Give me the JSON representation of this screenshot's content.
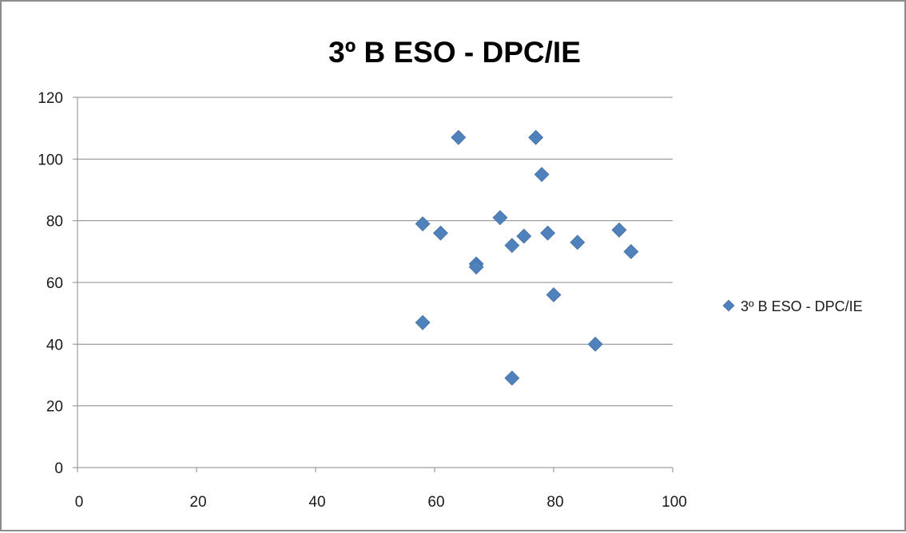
{
  "chart_data": {
    "type": "scatter",
    "title": "3º B ESO - DPC/IE",
    "xlabel": "",
    "ylabel": "",
    "xlim": [
      0,
      100
    ],
    "ylim": [
      0,
      120
    ],
    "x_ticks": [
      0,
      20,
      40,
      60,
      80,
      100
    ],
    "y_ticks": [
      0,
      20,
      40,
      60,
      80,
      100,
      120
    ],
    "grid": "horizontal",
    "legend_position": "right",
    "series": [
      {
        "name": "3º B ESO - DPC/IE",
        "color": "#4f81bd",
        "marker": "diamond",
        "points": [
          {
            "x": 58,
            "y": 79
          },
          {
            "x": 58,
            "y": 47
          },
          {
            "x": 61,
            "y": 76
          },
          {
            "x": 64,
            "y": 107
          },
          {
            "x": 67,
            "y": 66
          },
          {
            "x": 67,
            "y": 65
          },
          {
            "x": 71,
            "y": 81
          },
          {
            "x": 73,
            "y": 72
          },
          {
            "x": 73,
            "y": 29
          },
          {
            "x": 75,
            "y": 75
          },
          {
            "x": 77,
            "y": 107
          },
          {
            "x": 78,
            "y": 95
          },
          {
            "x": 79,
            "y": 76
          },
          {
            "x": 80,
            "y": 56
          },
          {
            "x": 84,
            "y": 73
          },
          {
            "x": 87,
            "y": 40
          },
          {
            "x": 91,
            "y": 77
          },
          {
            "x": 93,
            "y": 70
          }
        ]
      }
    ]
  }
}
